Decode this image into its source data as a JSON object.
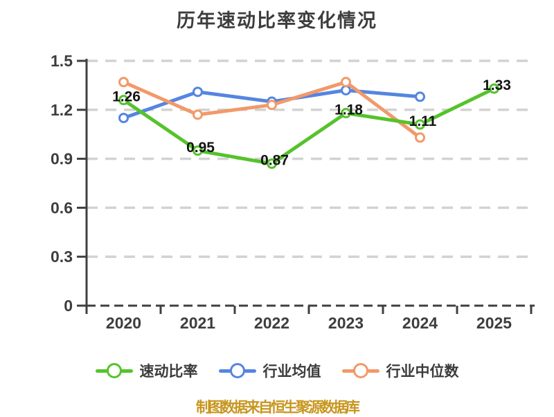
{
  "title": "历年速动比率变化情况",
  "footer": "制图数据来自恒生聚源数据库",
  "colors": {
    "green": "#55c32b",
    "blue": "#5585e0",
    "orange": "#f2996a",
    "grid": "#d2d2d2",
    "axis": "#3f3f3f",
    "tick_text": "#3d3d3d",
    "data_label": "#141414",
    "title_text": "#3d3d3d",
    "footer_text": "#c8961f"
  },
  "legend": {
    "items": [
      {
        "label": "速动比率",
        "color": "#55c32b"
      },
      {
        "label": "行业均值",
        "color": "#5585e0"
      },
      {
        "label": "行业中位数",
        "color": "#f2996a"
      }
    ]
  },
  "chart_data": {
    "type": "line",
    "title": "历年速动比率变化情况",
    "categories": [
      "2020",
      "2021",
      "2022",
      "2023",
      "2024",
      "2025"
    ],
    "series": [
      {
        "name": "速动比率",
        "color": "#55c32b",
        "labeled": true,
        "values": [
          1.26,
          0.95,
          0.87,
          1.18,
          1.11,
          1.33
        ]
      },
      {
        "name": "行业均值",
        "color": "#5585e0",
        "labeled": false,
        "values": [
          1.15,
          1.31,
          1.25,
          1.32,
          1.28,
          null
        ]
      },
      {
        "name": "行业中位数",
        "color": "#f2996a",
        "labeled": false,
        "values": [
          1.37,
          1.17,
          1.23,
          1.37,
          1.03,
          null
        ]
      }
    ],
    "y_ticks": [
      0,
      0.3,
      0.6,
      0.9,
      1.2,
      1.5
    ],
    "y_tick_labels": [
      "0",
      "0.3",
      "0.6",
      "0.9",
      "1.2",
      "1.5"
    ],
    "ylim": [
      0,
      1.5
    ],
    "grid": true,
    "grid_style": "dashed",
    "legend_position": "bottom"
  }
}
